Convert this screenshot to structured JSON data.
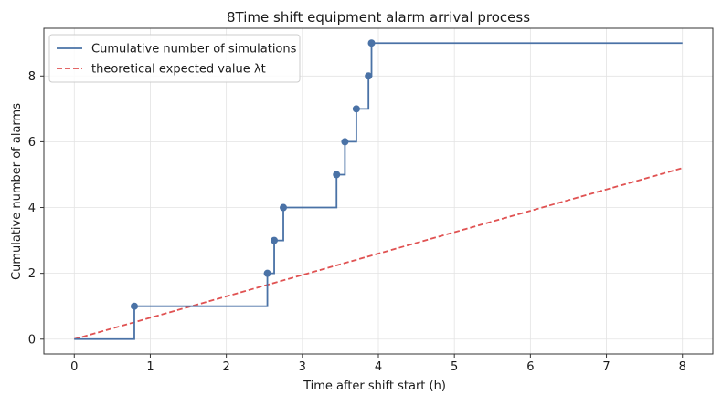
{
  "chart_data": {
    "type": "line",
    "title": "8Time shift equipment alarm arrival process",
    "xlabel": "Time after shift start (h)",
    "ylabel": "Cumulative number of alarms",
    "xlim": [
      -0.4,
      8.4
    ],
    "ylim": [
      -0.45,
      9.45
    ],
    "xticks": [
      0,
      1,
      2,
      3,
      4,
      5,
      6,
      7,
      8
    ],
    "yticks": [
      0,
      2,
      4,
      6,
      8
    ],
    "grid": true,
    "legend_position": "top-left",
    "series": [
      {
        "name": "Cumulative number of simulations",
        "style": "step-post with markers",
        "color": "#4a72a6",
        "x": [
          0,
          0.79,
          2.54,
          2.63,
          2.75,
          3.45,
          3.56,
          3.71,
          3.87,
          3.91,
          8.0
        ],
        "y": [
          0,
          1,
          2,
          3,
          4,
          5,
          6,
          7,
          8,
          9,
          9
        ],
        "markers_x": [
          0.79,
          2.54,
          2.63,
          2.75,
          3.45,
          3.56,
          3.71,
          3.87,
          3.91
        ],
        "markers_y": [
          1,
          2,
          3,
          4,
          5,
          6,
          7,
          8,
          9
        ]
      },
      {
        "name": "theoretical expected value λt",
        "style": "dashed",
        "color": "#e05252",
        "x": [
          0,
          8
        ],
        "y": [
          0,
          5.2
        ]
      }
    ]
  }
}
